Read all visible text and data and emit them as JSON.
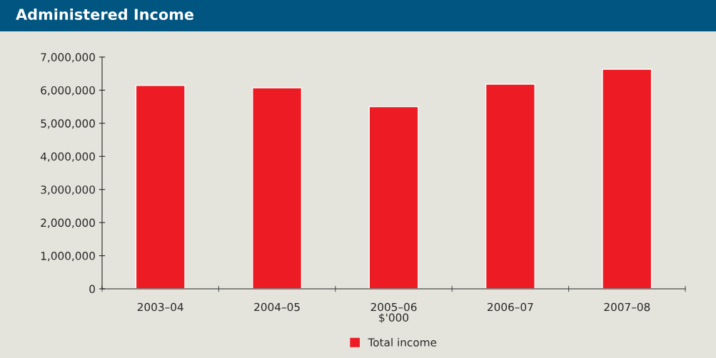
{
  "chart_data": {
    "type": "bar",
    "title": "Administered Income",
    "xlabel": "$'000",
    "categories": [
      "2003–04",
      "2004–05",
      "2005–06",
      "2006–07",
      "2007–08"
    ],
    "series": [
      {
        "name": "Total income",
        "color": "#ed1c24",
        "values": [
          6140000,
          6070000,
          5500000,
          6180000,
          6630000
        ]
      }
    ],
    "ylim": [
      0,
      7000000
    ],
    "yticks": [
      {
        "value": 0,
        "label": "0"
      },
      {
        "value": 1000000,
        "label": "1,000,000"
      },
      {
        "value": 2000000,
        "label": "2,000,000"
      },
      {
        "value": 3000000,
        "label": "3,000,000"
      },
      {
        "value": 4000000,
        "label": "4,000,000"
      },
      {
        "value": 5000000,
        "label": "5,000,000"
      },
      {
        "value": 6000000,
        "label": "6,000,000"
      },
      {
        "value": 7000000,
        "label": "7,000,000"
      }
    ],
    "grid": false,
    "legend": "bottom"
  }
}
